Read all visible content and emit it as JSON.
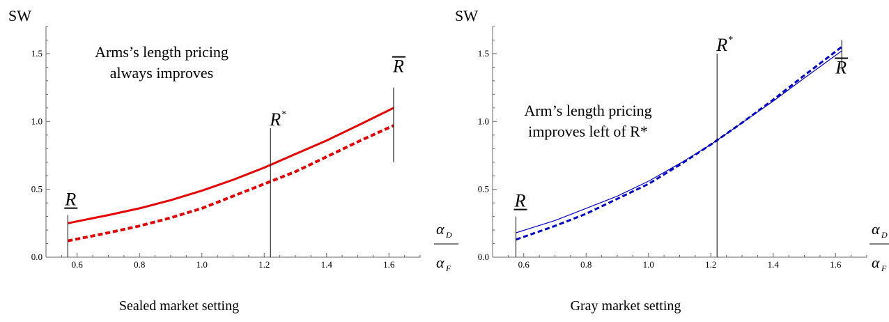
{
  "chart_data": [
    {
      "type": "line",
      "caption": "Sealed market setting",
      "ylabel": "SW",
      "xlabel": {
        "numerator": "α",
        "numerator_sub": "D",
        "denominator": "α",
        "denominator_sub": "F"
      },
      "xlim": [
        0.5,
        1.7
      ],
      "ylim": [
        0,
        1.7
      ],
      "xticks": [
        "0.6",
        "0.8",
        "1.0",
        "1.2",
        "1.4",
        "1.6"
      ],
      "yticks": [
        "0.0",
        "0.5",
        "1.0",
        "1.5"
      ],
      "annotation": [
        "Arms’s length pricing",
        "always improves"
      ],
      "markers": [
        {
          "label": "R",
          "decor": "underline",
          "x": 0.57,
          "y_from": 0,
          "y_to": 0.31
        },
        {
          "label": "R",
          "sup": "*",
          "decor": "none",
          "x": 1.22,
          "y_from": 0,
          "y_to": 0.95
        },
        {
          "label": "R",
          "decor": "overline",
          "x": 1.615,
          "y_from": 0.7,
          "y_to": 1.25
        }
      ],
      "series": [
        {
          "style": "solid",
          "color": "#e60000",
          "width": 3,
          "x": [
            0.57,
            0.7,
            0.8,
            0.9,
            1.0,
            1.1,
            1.2,
            1.3,
            1.4,
            1.5,
            1.615
          ],
          "y": [
            0.25,
            0.31,
            0.36,
            0.42,
            0.49,
            0.57,
            0.66,
            0.76,
            0.86,
            0.97,
            1.1
          ]
        },
        {
          "style": "dashed",
          "color": "#e60000",
          "width": 4,
          "x": [
            0.57,
            0.7,
            0.8,
            0.9,
            1.0,
            1.1,
            1.2,
            1.3,
            1.4,
            1.5,
            1.615
          ],
          "y": [
            0.12,
            0.18,
            0.23,
            0.29,
            0.36,
            0.45,
            0.54,
            0.63,
            0.74,
            0.85,
            0.97
          ]
        }
      ]
    },
    {
      "type": "line",
      "caption": "Gray market setting",
      "ylabel": "SW",
      "xlabel": {
        "numerator": "α",
        "numerator_sub": "D",
        "denominator": "α",
        "denominator_sub": "F"
      },
      "xlim": [
        0.5,
        1.7
      ],
      "ylim": [
        0,
        1.7
      ],
      "xticks": [
        "0.6",
        "0.8",
        "1.0",
        "1.2",
        "1.4",
        "1.6"
      ],
      "yticks": [
        "0.0",
        "0.5",
        "1.0",
        "1.5"
      ],
      "annotation": [
        "Arm’s length pricing",
        "improves left of R*"
      ],
      "markers": [
        {
          "label": "R",
          "decor": "underline",
          "x": 0.575,
          "y_from": 0,
          "y_to": 0.3
        },
        {
          "label": "R",
          "sup": "*",
          "decor": "none",
          "x": 1.22,
          "y_from": 0,
          "y_to": 1.5
        },
        {
          "label": "R",
          "decor": "overline",
          "x": 1.62,
          "y_from": 1.4,
          "y_to": 1.6
        }
      ],
      "series": [
        {
          "style": "solid",
          "color": "#0000cc",
          "width": 1.2,
          "x": [
            0.575,
            0.7,
            0.8,
            0.9,
            1.0,
            1.1,
            1.2,
            1.3,
            1.4,
            1.5,
            1.62
          ],
          "y": [
            0.18,
            0.27,
            0.36,
            0.45,
            0.56,
            0.69,
            0.83,
            0.99,
            1.15,
            1.32,
            1.52
          ]
        },
        {
          "style": "dashed",
          "color": "#0000cc",
          "width": 3,
          "x": [
            0.575,
            0.7,
            0.8,
            0.9,
            1.0,
            1.1,
            1.2,
            1.3,
            1.4,
            1.5,
            1.62
          ],
          "y": [
            0.13,
            0.23,
            0.32,
            0.43,
            0.54,
            0.68,
            0.83,
            0.99,
            1.16,
            1.34,
            1.55
          ]
        }
      ]
    }
  ]
}
